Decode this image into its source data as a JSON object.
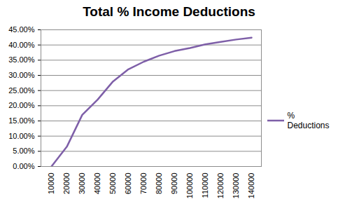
{
  "chart_data": {
    "type": "line",
    "title": "Total % Income Deductions",
    "categories": [
      "10000",
      "20000",
      "30000",
      "40000",
      "50000",
      "60000",
      "70000",
      "80000",
      "90000",
      "100000",
      "110000",
      "120000",
      "130000",
      "140000"
    ],
    "series": [
      {
        "name": "% Deductions",
        "color": "#7e5fa8",
        "values": [
          0,
          6.5,
          17,
          22,
          28,
          32,
          34.5,
          36.5,
          38,
          39,
          40.2,
          41,
          41.8,
          42.4
        ]
      }
    ],
    "ylim": [
      0,
      45
    ],
    "yticks": [
      {
        "value": 0,
        "label": "0.00%"
      },
      {
        "value": 5,
        "label": "5.00%"
      },
      {
        "value": 10,
        "label": "10.00%"
      },
      {
        "value": 15,
        "label": "15.00%"
      },
      {
        "value": 20,
        "label": "20.00%"
      },
      {
        "value": 25,
        "label": "25.00%"
      },
      {
        "value": 30,
        "label": "30.00%"
      },
      {
        "value": 35,
        "label": "35.00%"
      },
      {
        "value": 40,
        "label": "40.00%"
      },
      {
        "value": 45,
        "label": "45.00%"
      }
    ],
    "grid": true,
    "legend": "right"
  }
}
